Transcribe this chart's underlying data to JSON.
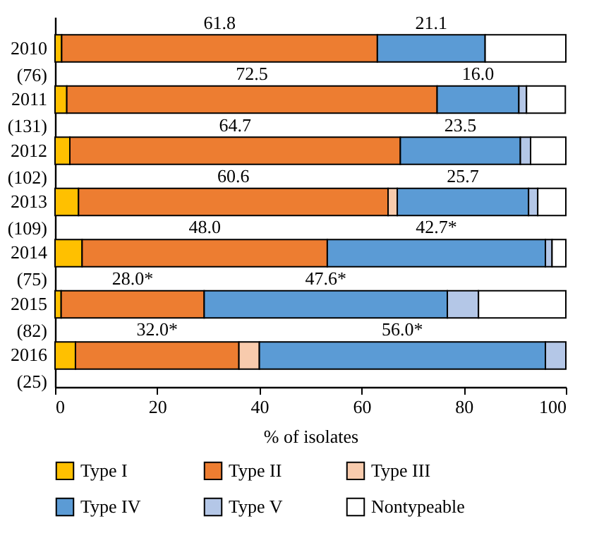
{
  "chart_data": {
    "type": "bar",
    "orientation": "horizontal",
    "stacked": true,
    "xlabel": "% of isolates",
    "categories": [
      "2010\n(76)",
      "2011\n(131)",
      "2012\n(102)",
      "2013\n(109)",
      "2014\n(75)",
      "2015\n(82)",
      "2016\n(25)"
    ],
    "series": [
      {
        "name": "Type I",
        "color": "#ffc000",
        "values": [
          1.3,
          2.3,
          2.9,
          4.6,
          5.3,
          1.2,
          4.0
        ]
      },
      {
        "name": "Type II",
        "color": "#ed7d31",
        "values": [
          61.8,
          72.5,
          64.7,
          60.6,
          48.0,
          28.0,
          32.0
        ],
        "value_labels": [
          "61.8",
          "72.5",
          "64.7",
          "60.6",
          "48.0",
          "28.0*",
          "32.0*"
        ]
      },
      {
        "name": "Type III",
        "color": "#f8cbad",
        "values": [
          0,
          0,
          0,
          1.8,
          0,
          0,
          4.0
        ]
      },
      {
        "name": "Type IV",
        "color": "#5b9bd5",
        "values": [
          21.1,
          16.0,
          23.5,
          25.7,
          42.7,
          47.6,
          56.0
        ],
        "value_labels": [
          "21.1",
          "16.0",
          "23.5",
          "25.7",
          "42.7*",
          "47.6*",
          "56.0*"
        ]
      },
      {
        "name": "Type V",
        "color": "#b4c7e7",
        "values": [
          0,
          1.5,
          2.0,
          1.8,
          1.3,
          6.1,
          4.0
        ]
      },
      {
        "name": "Nontypeable",
        "color": "#ffffff",
        "values": [
          15.8,
          7.6,
          6.9,
          5.5,
          2.7,
          17.1,
          0
        ]
      }
    ],
    "xlim": [
      0,
      100
    ],
    "xticks": [
      0,
      20,
      40,
      60,
      80,
      100
    ],
    "legend": "bottom",
    "grid": false
  }
}
